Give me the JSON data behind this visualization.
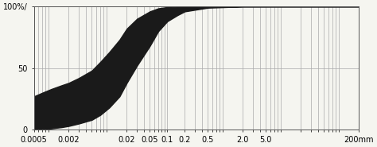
{
  "xlabel": "mm",
  "ylabel_ticks": [
    "0",
    "50",
    "100%/"
  ],
  "yticks": [
    0,
    50,
    100
  ],
  "ylim": [
    0,
    100
  ],
  "xlim": [
    0.0005,
    200
  ],
  "xtick_positions": [
    0.0005,
    0.002,
    0.02,
    0.05,
    0.1,
    0.2,
    0.5,
    2.0,
    5.0,
    200.0
  ],
  "xtick_labels": [
    "0.0005",
    "0.002",
    "0.02",
    "0.05",
    "0.1",
    "0.2",
    "0.5",
    "2.0",
    "5.0",
    "200mm"
  ],
  "upper_curve_x": [
    0.0005,
    0.0007,
    0.001,
    0.0015,
    0.002,
    0.003,
    0.005,
    0.007,
    0.01,
    0.015,
    0.02,
    0.03,
    0.05,
    0.07,
    0.1,
    0.15,
    0.2,
    0.5,
    2.0,
    5.0,
    200.0
  ],
  "upper_curve_y": [
    27,
    30,
    33,
    36,
    38,
    42,
    48,
    55,
    63,
    73,
    82,
    90,
    96,
    98.5,
    99.5,
    99.8,
    99.9,
    100,
    100,
    100,
    100
  ],
  "lower_curve_x": [
    0.0005,
    0.0007,
    0.001,
    0.0015,
    0.002,
    0.003,
    0.005,
    0.007,
    0.01,
    0.015,
    0.02,
    0.03,
    0.05,
    0.07,
    0.1,
    0.15,
    0.2,
    0.5,
    2.0,
    5.0,
    200.0
  ],
  "lower_curve_y": [
    0,
    0.5,
    1,
    2,
    3,
    5,
    8,
    12,
    18,
    27,
    38,
    52,
    68,
    80,
    88,
    93,
    96,
    99,
    100,
    100,
    100
  ],
  "fill_color": "#1a1a1a",
  "fill_alpha": 1.0,
  "grid_color": "#aaaaaa",
  "background_color": "#f5f5f0",
  "font_size": 7
}
